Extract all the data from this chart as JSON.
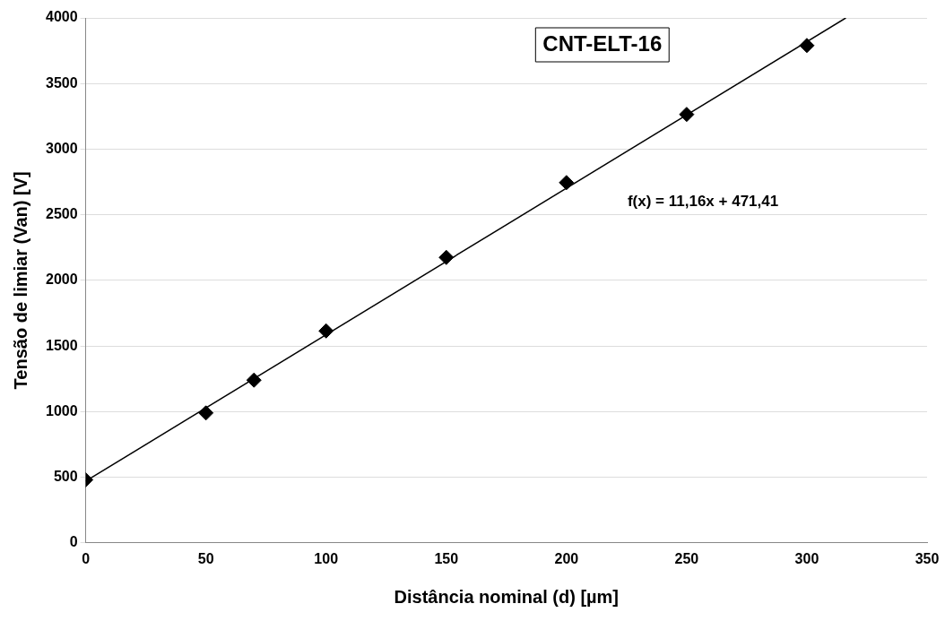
{
  "chart_data": {
    "type": "scatter",
    "title": "CNT-ELT-16",
    "xlabel": "Distância nominal (d) [µm]",
    "ylabel": "Tensão de limiar (Van) [V]",
    "x": [
      0,
      50,
      70,
      100,
      150,
      200,
      250,
      300
    ],
    "series": [
      {
        "type": "scatter",
        "color": "#000000",
        "marker": "diamond",
        "values": [
          480,
          990,
          1240,
          1615,
          2175,
          2745,
          3265,
          3790
        ]
      },
      {
        "type": "line",
        "color": "#000000",
        "line_style": "solid",
        "marker": "none",
        "x": [
          0,
          316.2
        ],
        "values": [
          470,
          4000
        ]
      }
    ],
    "xlim": [
      0,
      350
    ],
    "xticks": [
      0,
      50,
      100,
      150,
      200,
      250,
      300,
      350
    ],
    "ylim": [
      0,
      4000
    ],
    "yticks": [
      0,
      500,
      1000,
      1500,
      2000,
      2500,
      3000,
      3500,
      4000
    ],
    "grid": "y",
    "legend": false,
    "annotations": [
      "f(x) = 11,16x + 471,41"
    ]
  }
}
